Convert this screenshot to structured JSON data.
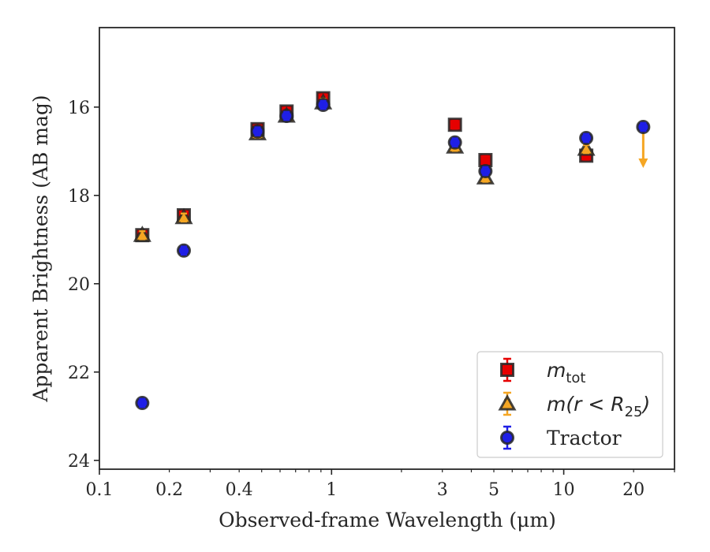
{
  "chart_data": {
    "type": "scatter",
    "xlabel": "Observed-frame Wavelength (μm)",
    "ylabel": "Apparent Brightness (AB mag)",
    "x_scale": "log",
    "xlim": [
      0.1,
      30
    ],
    "ylim": [
      24.2,
      14.2
    ],
    "y_inverted": true,
    "grid": false,
    "legend_position": "bottom-right",
    "x_tick_labels": [
      "0.1",
      "0.2",
      "0.4",
      "1",
      "3",
      "5",
      "10",
      "20"
    ],
    "y_tick_labels": [
      "16",
      "18",
      "20",
      "22",
      "24"
    ],
    "series": [
      {
        "name": "m_tot",
        "legend_parts": [
          "m",
          "tot"
        ],
        "marker": "square",
        "color": "#e60000",
        "errcolor": "#e60000",
        "points": [
          {
            "x": 0.153,
            "y": 18.9
          },
          {
            "x": 0.231,
            "y": 18.45
          },
          {
            "x": 0.48,
            "y": 16.5
          },
          {
            "x": 0.64,
            "y": 16.1
          },
          {
            "x": 0.92,
            "y": 15.8
          },
          {
            "x": 3.4,
            "y": 16.4
          },
          {
            "x": 4.6,
            "y": 17.2
          },
          {
            "x": 12.5,
            "y": 17.1
          }
        ]
      },
      {
        "name": "m(r < R25)",
        "legend_parts": [
          "m(r < R",
          "25",
          ")"
        ],
        "marker": "triangle",
        "color": "#f5a623",
        "errcolor": "#f5a623",
        "points": [
          {
            "x": 0.153,
            "y": 18.9
          },
          {
            "x": 0.231,
            "y": 18.5
          },
          {
            "x": 0.48,
            "y": 16.6
          },
          {
            "x": 0.64,
            "y": 16.2
          },
          {
            "x": 0.92,
            "y": 15.9
          },
          {
            "x": 3.4,
            "y": 16.9
          },
          {
            "x": 4.6,
            "y": 17.6
          },
          {
            "x": 12.5,
            "y": 16.95
          },
          {
            "x": 22.0,
            "y": 16.45,
            "upper_limit": true
          }
        ]
      },
      {
        "name": "Tractor",
        "legend_parts": [
          "Tractor"
        ],
        "marker": "circle",
        "color": "#1f1fe6",
        "errcolor": "#1f1fe6",
        "points": [
          {
            "x": 0.153,
            "y": 22.7
          },
          {
            "x": 0.231,
            "y": 19.25
          },
          {
            "x": 0.48,
            "y": 16.55
          },
          {
            "x": 0.64,
            "y": 16.2
          },
          {
            "x": 0.92,
            "y": 15.95
          },
          {
            "x": 3.4,
            "y": 16.8
          },
          {
            "x": 4.6,
            "y": 17.45
          },
          {
            "x": 12.5,
            "y": 16.7
          },
          {
            "x": 22.0,
            "y": 16.45
          }
        ]
      }
    ]
  }
}
